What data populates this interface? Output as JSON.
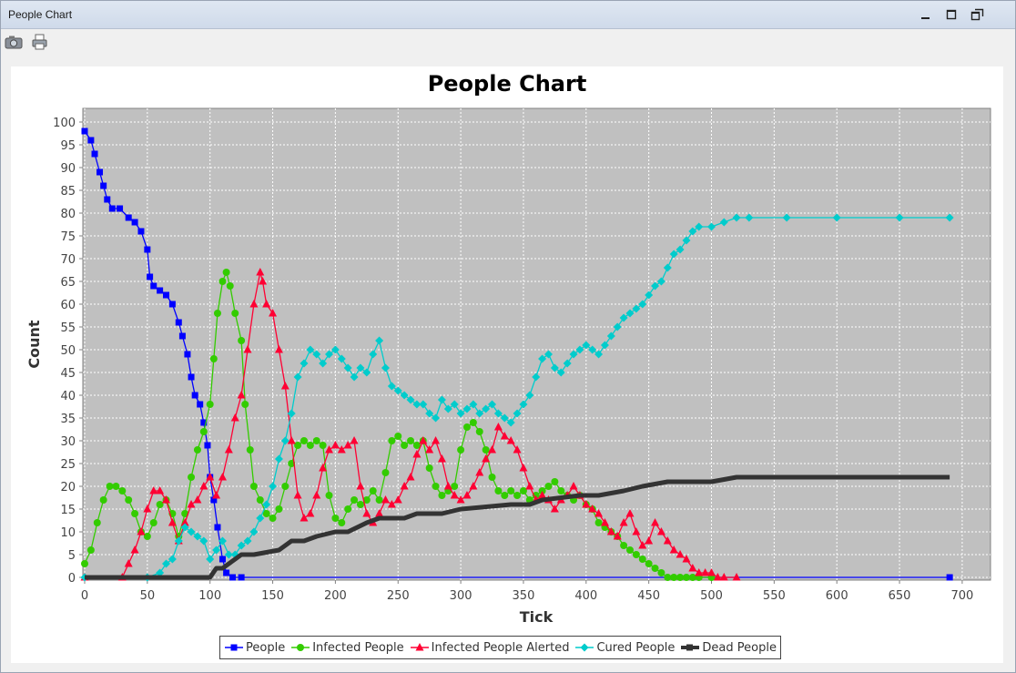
{
  "window": {
    "title": "People Chart",
    "minimize_icon": "minimize-icon",
    "maximize_icon": "maximize-icon",
    "restore_icon": "restore-icon"
  },
  "toolbar": {
    "icons": [
      "camera-icon",
      "print-icon"
    ]
  },
  "colors": {
    "plot_background": "#c0c0c0",
    "gridlines": "#ffffff",
    "people": "#0000ff",
    "infected": "#33cc00",
    "alerted": "#ff0033",
    "cured": "#00cccc",
    "dead": "#333333"
  },
  "chart_data": {
    "type": "line",
    "title": "People Chart",
    "xlabel": "Tick",
    "ylabel": "Count",
    "xlim": [
      0,
      720
    ],
    "ylim": [
      0,
      100
    ],
    "xticks": [
      0,
      50,
      100,
      150,
      200,
      250,
      300,
      350,
      400,
      450,
      500,
      550,
      600,
      650,
      700
    ],
    "yticks": [
      0,
      5,
      10,
      15,
      20,
      25,
      30,
      35,
      40,
      45,
      50,
      55,
      60,
      65,
      70,
      75,
      80,
      85,
      90,
      95,
      100
    ],
    "grid": true,
    "legend_position": "bottom",
    "series": [
      {
        "name": "People",
        "color": "#0000ff",
        "marker": "square",
        "x": [
          0,
          5,
          8,
          12,
          15,
          18,
          22,
          28,
          35,
          40,
          45,
          50,
          52,
          55,
          60,
          65,
          70,
          75,
          78,
          82,
          85,
          88,
          92,
          95,
          98,
          100,
          103,
          106,
          110,
          113,
          118,
          125,
          690
        ],
        "y": [
          98,
          96,
          93,
          89,
          86,
          83,
          81,
          81,
          79,
          78,
          76,
          72,
          66,
          64,
          63,
          62,
          60,
          56,
          53,
          49,
          44,
          40,
          38,
          34,
          29,
          22,
          17,
          11,
          4,
          1,
          0,
          0,
          0
        ]
      },
      {
        "name": "Infected People",
        "color": "#33cc00",
        "marker": "circle",
        "x": [
          0,
          5,
          10,
          15,
          20,
          25,
          30,
          35,
          40,
          45,
          50,
          55,
          60,
          65,
          70,
          75,
          80,
          85,
          90,
          95,
          100,
          103,
          106,
          110,
          113,
          116,
          120,
          125,
          128,
          132,
          135,
          140,
          145,
          150,
          155,
          160,
          165,
          170,
          175,
          180,
          185,
          190,
          195,
          200,
          205,
          210,
          215,
          220,
          225,
          230,
          235,
          240,
          245,
          250,
          255,
          260,
          265,
          270,
          275,
          280,
          285,
          290,
          295,
          300,
          305,
          310,
          315,
          320,
          325,
          330,
          335,
          340,
          345,
          350,
          355,
          360,
          365,
          370,
          375,
          380,
          385,
          390,
          395,
          400,
          405,
          410,
          415,
          420,
          425,
          430,
          435,
          440,
          445,
          450,
          455,
          460,
          465,
          470,
          475,
          480,
          485,
          490,
          500
        ],
        "y": [
          3,
          6,
          12,
          17,
          20,
          20,
          19,
          17,
          14,
          10,
          9,
          12,
          16,
          17,
          14,
          9,
          14,
          22,
          28,
          32,
          38,
          48,
          58,
          65,
          67,
          64,
          58,
          52,
          38,
          28,
          20,
          17,
          14,
          13,
          15,
          20,
          25,
          29,
          30,
          29,
          30,
          29,
          18,
          13,
          12,
          15,
          17,
          16,
          17,
          19,
          17,
          23,
          30,
          31,
          29,
          30,
          29,
          30,
          24,
          20,
          18,
          19,
          20,
          28,
          33,
          34,
          32,
          28,
          22,
          19,
          18,
          19,
          18,
          19,
          17,
          18,
          19,
          20,
          21,
          19,
          18,
          17,
          18,
          16,
          15,
          12,
          11,
          10,
          9,
          7,
          6,
          5,
          4,
          3,
          2,
          1,
          0,
          0,
          0,
          0,
          0,
          0,
          0
        ]
      },
      {
        "name": "Infected People Alerted",
        "color": "#ff0033",
        "marker": "triangle",
        "x": [
          0,
          30,
          35,
          40,
          45,
          50,
          55,
          60,
          65,
          70,
          75,
          80,
          85,
          90,
          95,
          100,
          105,
          110,
          115,
          120,
          125,
          130,
          135,
          140,
          142,
          145,
          150,
          155,
          160,
          165,
          170,
          175,
          180,
          185,
          190,
          195,
          200,
          205,
          210,
          215,
          220,
          225,
          230,
          235,
          240,
          245,
          250,
          255,
          260,
          265,
          270,
          275,
          280,
          285,
          290,
          295,
          300,
          305,
          310,
          315,
          320,
          325,
          330,
          335,
          340,
          345,
          350,
          355,
          360,
          365,
          370,
          375,
          380,
          385,
          390,
          395,
          400,
          405,
          410,
          415,
          420,
          425,
          430,
          435,
          440,
          445,
          450,
          455,
          460,
          465,
          470,
          475,
          480,
          485,
          490,
          495,
          500,
          505,
          510,
          520
        ],
        "y": [
          0,
          0,
          3,
          6,
          10,
          15,
          19,
          19,
          17,
          12,
          8,
          12,
          16,
          17,
          20,
          22,
          18,
          22,
          28,
          35,
          40,
          50,
          60,
          67,
          65,
          60,
          58,
          50,
          42,
          30,
          18,
          13,
          14,
          18,
          24,
          28,
          29,
          28,
          29,
          30,
          20,
          14,
          12,
          14,
          17,
          16,
          17,
          20,
          22,
          27,
          30,
          28,
          30,
          26,
          20,
          18,
          17,
          18,
          20,
          23,
          26,
          28,
          33,
          31,
          30,
          28,
          24,
          20,
          17,
          18,
          17,
          15,
          17,
          18,
          20,
          18,
          16,
          15,
          14,
          12,
          10,
          9,
          12,
          14,
          10,
          7,
          8,
          12,
          10,
          8,
          6,
          5,
          4,
          2,
          1,
          1,
          1,
          0,
          0,
          0
        ]
      },
      {
        "name": "Cured People",
        "color": "#00cccc",
        "marker": "diamond",
        "x": [
          0,
          50,
          60,
          65,
          70,
          75,
          80,
          85,
          90,
          95,
          100,
          105,
          110,
          115,
          120,
          125,
          130,
          135,
          140,
          145,
          150,
          155,
          160,
          165,
          170,
          175,
          180,
          185,
          190,
          195,
          200,
          205,
          210,
          215,
          220,
          225,
          230,
          235,
          240,
          245,
          250,
          255,
          260,
          265,
          270,
          275,
          280,
          285,
          290,
          295,
          300,
          305,
          310,
          315,
          320,
          325,
          330,
          335,
          340,
          345,
          350,
          355,
          360,
          365,
          370,
          375,
          380,
          385,
          390,
          395,
          400,
          405,
          410,
          415,
          420,
          425,
          430,
          435,
          440,
          445,
          450,
          455,
          460,
          465,
          470,
          475,
          480,
          485,
          490,
          500,
          510,
          520,
          530,
          560,
          600,
          650,
          690
        ],
        "y": [
          0,
          0,
          1,
          3,
          4,
          8,
          11,
          10,
          9,
          8,
          4,
          6,
          8,
          5,
          5,
          7,
          8,
          10,
          13,
          16,
          20,
          26,
          30,
          36,
          44,
          47,
          50,
          49,
          47,
          49,
          50,
          48,
          46,
          44,
          46,
          45,
          49,
          52,
          46,
          42,
          41,
          40,
          39,
          38,
          38,
          36,
          35,
          39,
          37,
          38,
          36,
          37,
          38,
          36,
          37,
          38,
          36,
          35,
          34,
          36,
          38,
          40,
          44,
          48,
          49,
          46,
          45,
          47,
          49,
          50,
          51,
          50,
          49,
          51,
          53,
          55,
          57,
          58,
          59,
          60,
          62,
          64,
          65,
          68,
          71,
          72,
          74,
          76,
          77,
          77,
          78,
          79,
          79,
          79,
          79,
          79,
          79
        ]
      },
      {
        "name": "Dead People",
        "color": "#333333",
        "marker": "square",
        "x": [
          0,
          70,
          100,
          105,
          110,
          115,
          120,
          125,
          135,
          155,
          165,
          175,
          185,
          200,
          210,
          225,
          235,
          255,
          265,
          285,
          300,
          340,
          355,
          365,
          395,
          410,
          430,
          445,
          465,
          500,
          520,
          690
        ],
        "y": [
          0,
          0,
          0,
          2,
          2,
          3,
          4,
          5,
          5,
          6,
          8,
          8,
          9,
          10,
          10,
          12,
          13,
          13,
          14,
          14,
          15,
          16,
          16,
          17,
          18,
          18,
          19,
          20,
          21,
          21,
          22,
          22
        ]
      }
    ]
  }
}
